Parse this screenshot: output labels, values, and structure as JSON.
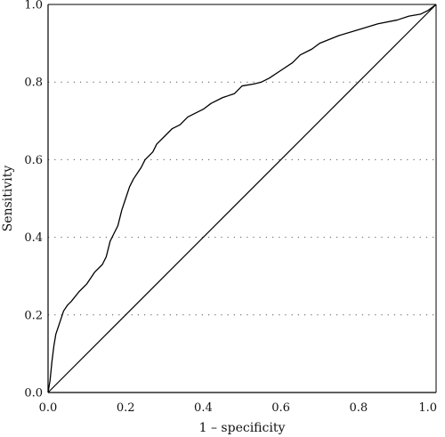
{
  "chart_data": {
    "type": "line",
    "title": "",
    "xlabel": "1 – specificity",
    "ylabel": "Sensitivity",
    "xlim": [
      0,
      1
    ],
    "ylim": [
      0,
      1
    ],
    "xticks": [
      "0.0",
      "0.2",
      "0.4",
      "0.6",
      "0.8",
      "1.0"
    ],
    "yticks": [
      "0.0",
      "0.2",
      "0.4",
      "0.6",
      "0.8",
      "1.0"
    ],
    "grid": "dotted horizontal",
    "series": [
      {
        "role": "roc-curve",
        "x": [
          0,
          0.005,
          0.01,
          0.015,
          0.02,
          0.03,
          0.04,
          0.05,
          0.06,
          0.08,
          0.1,
          0.12,
          0.14,
          0.15,
          0.16,
          0.17,
          0.18,
          0.19,
          0.2,
          0.21,
          0.22,
          0.23,
          0.24,
          0.25,
          0.26,
          0.27,
          0.28,
          0.3,
          0.32,
          0.34,
          0.36,
          0.38,
          0.4,
          0.42,
          0.45,
          0.48,
          0.5,
          0.53,
          0.55,
          0.57,
          0.6,
          0.63,
          0.65,
          0.68,
          0.7,
          0.75,
          0.8,
          0.85,
          0.9,
          0.93,
          0.96,
          0.98,
          1.0
        ],
        "y": [
          0,
          0.03,
          0.08,
          0.12,
          0.15,
          0.18,
          0.21,
          0.225,
          0.235,
          0.26,
          0.28,
          0.31,
          0.33,
          0.35,
          0.39,
          0.41,
          0.43,
          0.47,
          0.5,
          0.53,
          0.55,
          0.565,
          0.58,
          0.6,
          0.61,
          0.62,
          0.64,
          0.66,
          0.68,
          0.69,
          0.71,
          0.72,
          0.73,
          0.745,
          0.76,
          0.77,
          0.79,
          0.795,
          0.8,
          0.81,
          0.83,
          0.85,
          0.87,
          0.885,
          0.9,
          0.92,
          0.935,
          0.95,
          0.96,
          0.97,
          0.975,
          0.985,
          1.0
        ]
      },
      {
        "role": "reference-line",
        "x": [
          0,
          1
        ],
        "y": [
          0,
          1
        ]
      }
    ]
  }
}
